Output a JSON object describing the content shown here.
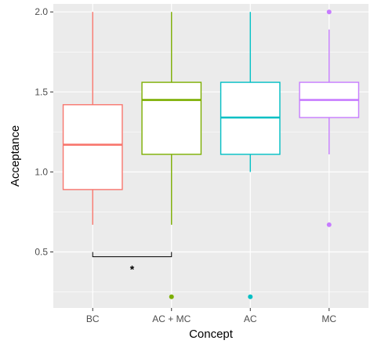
{
  "chart_data": {
    "type": "box",
    "x_label": "Concept",
    "y_label": "Acceptance",
    "ylim": [
      0.15,
      2.05
    ],
    "y_ticks": [
      "0.5",
      "1.0",
      "1.5",
      "2.0"
    ],
    "y_tick_values": [
      0.5,
      1.0,
      1.5,
      2.0
    ],
    "grid": true,
    "legend": "none",
    "panel_background": "#ebebeb",
    "categories": [
      "BC",
      "AC + MC",
      "AC",
      "MC"
    ],
    "series": [
      {
        "category": "BC",
        "color": "#f8766d",
        "whisker_low": 0.67,
        "q1": 0.89,
        "median": 1.17,
        "q3": 1.42,
        "whisker_high": 2.0,
        "outliers": []
      },
      {
        "category": "AC + MC",
        "color": "#7cae00",
        "whisker_low": 0.67,
        "q1": 1.11,
        "median": 1.45,
        "q3": 1.56,
        "whisker_high": 2.0,
        "outliers": [
          0.22
        ]
      },
      {
        "category": "AC",
        "color": "#00bfc4",
        "whisker_low": 1.0,
        "q1": 1.11,
        "median": 1.34,
        "q3": 1.56,
        "whisker_high": 2.0,
        "outliers": [
          0.22
        ]
      },
      {
        "category": "MC",
        "color": "#c77cff",
        "whisker_low": 1.11,
        "q1": 1.34,
        "median": 1.45,
        "q3": 1.56,
        "whisker_high": 1.89,
        "outliers": [
          2.0,
          0.67
        ]
      }
    ],
    "annotation": {
      "from": "BC",
      "to": "AC + MC",
      "y": 0.47,
      "label": "*"
    }
  }
}
